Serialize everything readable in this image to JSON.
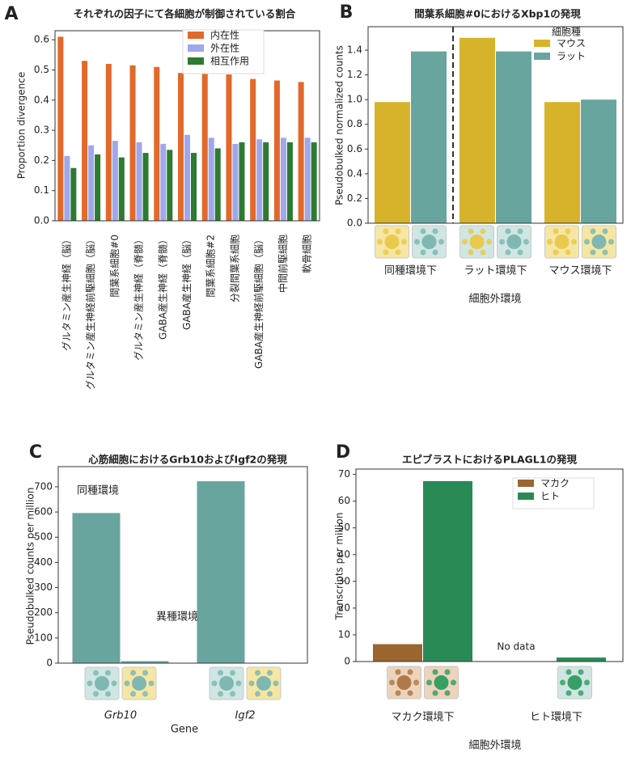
{
  "chart_data": [
    {
      "type": "bar",
      "label": "A",
      "title": "それぞれの因子にて各細胞が制御されている割合",
      "ylabel": "Proportion divergence",
      "categories": [
        "グルタミン産生神経（脳）",
        "グルタミン産生神経前駆細胞（脳）",
        "間葉系細胞#0",
        "グルタミン産生神経（脊髄）",
        "GABA産生神経（脊髄）",
        "GABA産生神経（脳）",
        "間葉系細胞#2",
        "分裂間葉系細胞",
        "GABA産生神経前駆細胞（脳）",
        "中間前駆細胞",
        "軟骨細胞"
      ],
      "series": [
        {
          "name": "内在性",
          "color": "#e0692b",
          "values": [
            0.61,
            0.53,
            0.52,
            0.515,
            0.51,
            0.49,
            0.49,
            0.485,
            0.47,
            0.465,
            0.46
          ]
        },
        {
          "name": "外在性",
          "color": "#9fa8ea",
          "values": [
            0.215,
            0.25,
            0.265,
            0.26,
            0.255,
            0.285,
            0.275,
            0.255,
            0.27,
            0.275,
            0.275
          ]
        },
        {
          "name": "相互作用",
          "color": "#2d7a31",
          "values": [
            0.175,
            0.22,
            0.21,
            0.225,
            0.235,
            0.225,
            0.24,
            0.26,
            0.26,
            0.26,
            0.26
          ]
        }
      ],
      "ylim": [
        0,
        0.63
      ],
      "yticks": [
        {
          "value": 0,
          "label": "0.0"
        },
        0.1,
        0.2,
        0.3,
        0.4,
        0.5,
        0.6
      ],
      "legend": "upper right"
    },
    {
      "type": "bar",
      "label": "B",
      "title": "間葉系細胞#0におけるXbp1の発現",
      "ylabel": "Pseudobulked normalized counts",
      "xlabel": "細胞外環境",
      "categories": [
        "同種環境下",
        "ラット環境下",
        "マウス環境下"
      ],
      "legend_title": "細胞種",
      "series": [
        {
          "name": "マウス",
          "color": "#d6b32b",
          "values": [
            0.98,
            1.5,
            0.98
          ]
        },
        {
          "name": "ラット",
          "color": "#69a59f",
          "values": [
            1.39,
            1.39,
            1.0
          ]
        }
      ],
      "ylim": [
        0,
        1.59
      ],
      "yticks": [
        {
          "value": 0,
          "label": "0.0"
        },
        0.2,
        0.4,
        0.6,
        0.8,
        {
          "value": 1,
          "label": "1.0"
        },
        1.2,
        1.4
      ],
      "legend": "upper right"
    },
    {
      "type": "bar",
      "label": "C",
      "title": "心筋細胞におけるGrb10およびIgf2の発現",
      "ylabel": "Pseudobulked counts per million",
      "xlabel": "Gene",
      "categories": [
        "Grb10",
        "Igf2"
      ],
      "series": [
        {
          "name": "同種環境",
          "color": "#69a59f",
          "values": [
            596,
            722
          ]
        },
        {
          "name": "異種環境",
          "color": "#69a59f",
          "values": [
            8,
            0
          ]
        }
      ],
      "ylim": [
        0,
        780
      ],
      "yticks": [
        0,
        100,
        200,
        300,
        400,
        500,
        600,
        700
      ]
    },
    {
      "type": "bar",
      "label": "D",
      "title": "エピブラストにおけるPLAGL1の発現",
      "ylabel": "Transcripts per million",
      "xlabel": "細胞外環境",
      "categories": [
        "マカク環境下",
        "ヒト環境下"
      ],
      "annotation": "No data",
      "series": [
        {
          "name": "マカク",
          "color": "#9a6630",
          "values": [
            6.5,
            null
          ]
        },
        {
          "name": "ヒト",
          "color": "#2a8a55",
          "values": [
            67.5,
            1.5
          ]
        }
      ],
      "ylim": [
        0,
        72
      ],
      "yticks": [
        0,
        10,
        20,
        30,
        40,
        50,
        60,
        70
      ],
      "legend": "upper right"
    }
  ]
}
